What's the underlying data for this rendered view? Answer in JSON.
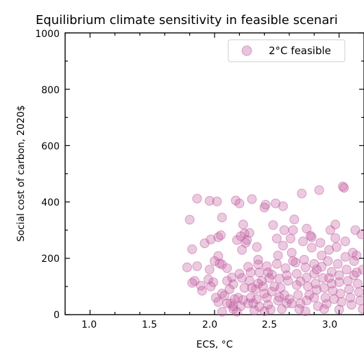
{
  "chart_data": {
    "type": "scatter",
    "title": "Equilibrium climate sensitivity in feasible scenari",
    "xlabel": "ECS, °C",
    "ylabel": "Social cost of carbon, 2020$",
    "xlim": [
      0.8,
      3.2
    ],
    "ylim": [
      0,
      1000
    ],
    "x_ticks": [
      "1.0",
      "1.5",
      "2.0",
      "2.5",
      "3.0"
    ],
    "y_ticks": [
      "0",
      "200",
      "400",
      "600",
      "800",
      "1000"
    ],
    "legend_position": "top-right",
    "grid": false,
    "series": [
      {
        "name": "2°C feasible",
        "color": "#c05a9e",
        "points": [
          [
            1.86,
            412
          ],
          [
            1.96,
            404
          ],
          [
            1.8,
            337
          ],
          [
            1.82,
            232
          ],
          [
            1.78,
            168
          ],
          [
            1.86,
            172
          ],
          [
            1.82,
            113
          ],
          [
            1.84,
            120
          ],
          [
            1.89,
            103
          ],
          [
            1.9,
            85
          ],
          [
            1.92,
            253
          ],
          [
            1.97,
            267
          ],
          [
            1.96,
            160
          ],
          [
            1.95,
            125
          ],
          [
            1.97,
            100
          ],
          [
            1.99,
            115
          ],
          [
            2.0,
            190
          ],
          [
            2.02,
            402
          ],
          [
            2.03,
            275
          ],
          [
            2.05,
            282
          ],
          [
            2.06,
            345
          ],
          [
            2.03,
            208
          ],
          [
            2.04,
            182
          ],
          [
            2.06,
            178
          ],
          [
            2.01,
            60
          ],
          [
            2.03,
            45
          ],
          [
            2.06,
            75
          ],
          [
            2.08,
            68
          ],
          [
            2.1,
            40
          ],
          [
            2.12,
            90
          ],
          [
            2.1,
            120
          ],
          [
            2.14,
            132
          ],
          [
            2.15,
            108
          ],
          [
            2.1,
            165
          ],
          [
            2.13,
            40
          ],
          [
            2.15,
            20
          ],
          [
            2.16,
            55
          ],
          [
            2.18,
            265
          ],
          [
            2.17,
            405
          ],
          [
            2.2,
            395
          ],
          [
            2.21,
            278
          ],
          [
            2.23,
            320
          ],
          [
            2.24,
            288
          ],
          [
            2.22,
            230
          ],
          [
            2.25,
            255
          ],
          [
            2.2,
            145
          ],
          [
            2.22,
            130
          ],
          [
            2.19,
            60
          ],
          [
            2.21,
            30
          ],
          [
            2.23,
            52
          ],
          [
            2.24,
            95
          ],
          [
            2.26,
            265
          ],
          [
            2.28,
            290
          ],
          [
            2.27,
            170
          ],
          [
            2.29,
            150
          ],
          [
            2.3,
            410
          ],
          [
            2.28,
            120
          ],
          [
            2.3,
            95
          ],
          [
            2.29,
            60
          ],
          [
            2.31,
            40
          ],
          [
            2.32,
            15
          ],
          [
            2.34,
            240
          ],
          [
            2.35,
            195
          ],
          [
            2.35,
            178
          ],
          [
            2.36,
            150
          ],
          [
            2.33,
            90
          ],
          [
            2.34,
            55
          ],
          [
            2.36,
            28
          ],
          [
            2.38,
            120
          ],
          [
            2.39,
            100
          ],
          [
            2.4,
            75
          ],
          [
            2.4,
            380
          ],
          [
            2.41,
            390
          ],
          [
            2.42,
            172
          ],
          [
            2.43,
            150
          ],
          [
            2.44,
            130
          ],
          [
            2.42,
            60
          ],
          [
            2.43,
            35
          ],
          [
            2.45,
            18
          ],
          [
            2.47,
            318
          ],
          [
            2.46,
            142
          ],
          [
            2.48,
            100
          ],
          [
            2.49,
            395
          ],
          [
            2.5,
            270
          ],
          [
            2.51,
            210
          ],
          [
            2.5,
            180
          ],
          [
            2.52,
            128
          ],
          [
            2.53,
            95
          ],
          [
            2.51,
            50
          ],
          [
            2.54,
            20
          ],
          [
            2.55,
            385
          ],
          [
            2.56,
            300
          ],
          [
            2.55,
            245
          ],
          [
            2.57,
            165
          ],
          [
            2.58,
            140
          ],
          [
            2.59,
            120
          ],
          [
            2.6,
            55
          ],
          [
            2.58,
            40
          ],
          [
            2.61,
            270
          ],
          [
            2.62,
            220
          ],
          [
            2.63,
            190
          ],
          [
            2.64,
            338
          ],
          [
            2.63,
            300
          ],
          [
            2.65,
            185
          ],
          [
            2.66,
            105
          ],
          [
            2.66,
            145
          ],
          [
            2.67,
            70
          ],
          [
            2.69,
            40
          ],
          [
            2.68,
            20
          ],
          [
            2.7,
            430
          ],
          [
            2.71,
            260
          ],
          [
            2.72,
            195
          ],
          [
            2.73,
            168
          ],
          [
            2.74,
            305
          ],
          [
            2.74,
            132
          ],
          [
            2.75,
            100
          ],
          [
            2.76,
            70
          ],
          [
            2.74,
            50
          ],
          [
            2.77,
            280
          ],
          [
            2.78,
            275
          ],
          [
            2.78,
            238
          ],
          [
            2.8,
            180
          ],
          [
            2.8,
            145
          ],
          [
            2.81,
            110
          ],
          [
            2.82,
            88
          ],
          [
            2.8,
            60
          ],
          [
            2.83,
            30
          ],
          [
            2.84,
            442
          ],
          [
            2.85,
            255
          ],
          [
            2.86,
            210
          ],
          [
            2.86,
            170
          ],
          [
            2.87,
            130
          ],
          [
            2.88,
            95
          ],
          [
            2.89,
            60
          ],
          [
            2.9,
            38
          ],
          [
            2.91,
            190
          ],
          [
            2.92,
            230
          ],
          [
            2.93,
            300
          ],
          [
            2.94,
            152
          ],
          [
            2.94,
            110
          ],
          [
            2.95,
            85
          ],
          [
            2.96,
            55
          ],
          [
            2.97,
            320
          ],
          [
            2.97,
            272
          ],
          [
            2.98,
            240
          ],
          [
            2.99,
            180
          ],
          [
            3.0,
            140
          ],
          [
            3.0,
            115
          ],
          [
            3.01,
            75
          ],
          [
            3.02,
            45
          ],
          [
            3.03,
            455
          ],
          [
            3.04,
            450
          ],
          [
            3.05,
            260
          ],
          [
            3.05,
            205
          ],
          [
            3.06,
            160
          ],
          [
            3.07,
            120
          ],
          [
            3.08,
            90
          ],
          [
            3.09,
            60
          ],
          [
            3.1,
            35
          ],
          [
            3.11,
            220
          ],
          [
            3.12,
            190
          ],
          [
            3.13,
            300
          ],
          [
            3.14,
            210
          ],
          [
            3.14,
            150
          ],
          [
            3.15,
            110
          ],
          [
            3.16,
            80
          ],
          [
            3.17,
            50
          ],
          [
            3.18,
            285
          ],
          [
            3.19,
            160
          ],
          [
            3.19,
            20
          ],
          [
            2.15,
            30
          ],
          [
            2.18,
            10
          ],
          [
            2.06,
            10
          ],
          [
            2.27,
            40
          ],
          [
            2.4,
            12
          ],
          [
            2.52,
            62
          ],
          [
            2.62,
            40
          ],
          [
            2.73,
            12
          ],
          [
            2.88,
            20
          ],
          [
            3.0,
            18
          ],
          [
            2.35,
            110
          ],
          [
            2.46,
            82
          ],
          [
            2.56,
            70
          ],
          [
            2.69,
            118
          ],
          [
            2.82,
            160
          ],
          [
            2.92,
            130
          ],
          [
            3.12,
            140
          ]
        ]
      }
    ]
  }
}
